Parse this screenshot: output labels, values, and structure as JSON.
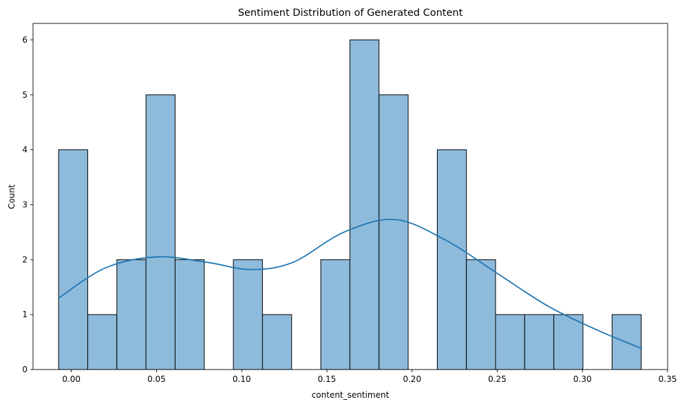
{
  "chart_data": {
    "type": "bar",
    "subtype": "histogram-with-kde",
    "title": "Sentiment Distribution of Generated Content",
    "xlabel": "content_sentiment",
    "ylabel": "Count",
    "xlim": [
      -0.0225,
      0.35
    ],
    "ylim": [
      0,
      6.3
    ],
    "xticks": [
      0.0,
      0.05,
      0.1,
      0.15,
      0.2,
      0.25,
      0.3,
      0.35
    ],
    "xtick_labels": [
      "0.00",
      "0.05",
      "0.10",
      "0.15",
      "0.20",
      "0.25",
      "0.30",
      "0.35"
    ],
    "yticks": [
      0,
      1,
      2,
      3,
      4,
      5,
      6
    ],
    "ytick_labels": [
      "0",
      "1",
      "2",
      "3",
      "4",
      "5",
      "6"
    ],
    "bin_start": -0.0075,
    "bin_width": 0.0171,
    "counts": [
      4,
      1,
      2,
      5,
      2,
      0,
      2,
      1,
      0,
      2,
      6,
      5,
      0,
      4,
      2,
      1,
      1,
      1,
      0,
      1
    ],
    "kde": {
      "x": [
        -0.0075,
        0.02,
        0.05,
        0.08,
        0.105,
        0.13,
        0.16,
        0.19,
        0.22,
        0.25,
        0.28,
        0.31,
        0.335
      ],
      "y": [
        1.3,
        1.85,
        2.05,
        1.95,
        1.82,
        1.95,
        2.5,
        2.73,
        2.35,
        1.75,
        1.15,
        0.7,
        0.38
      ]
    },
    "grid": false,
    "colors": {
      "bar_fill": "#8ebadb",
      "bar_edge": "#000000",
      "kde_line": "#1f77b4"
    }
  }
}
